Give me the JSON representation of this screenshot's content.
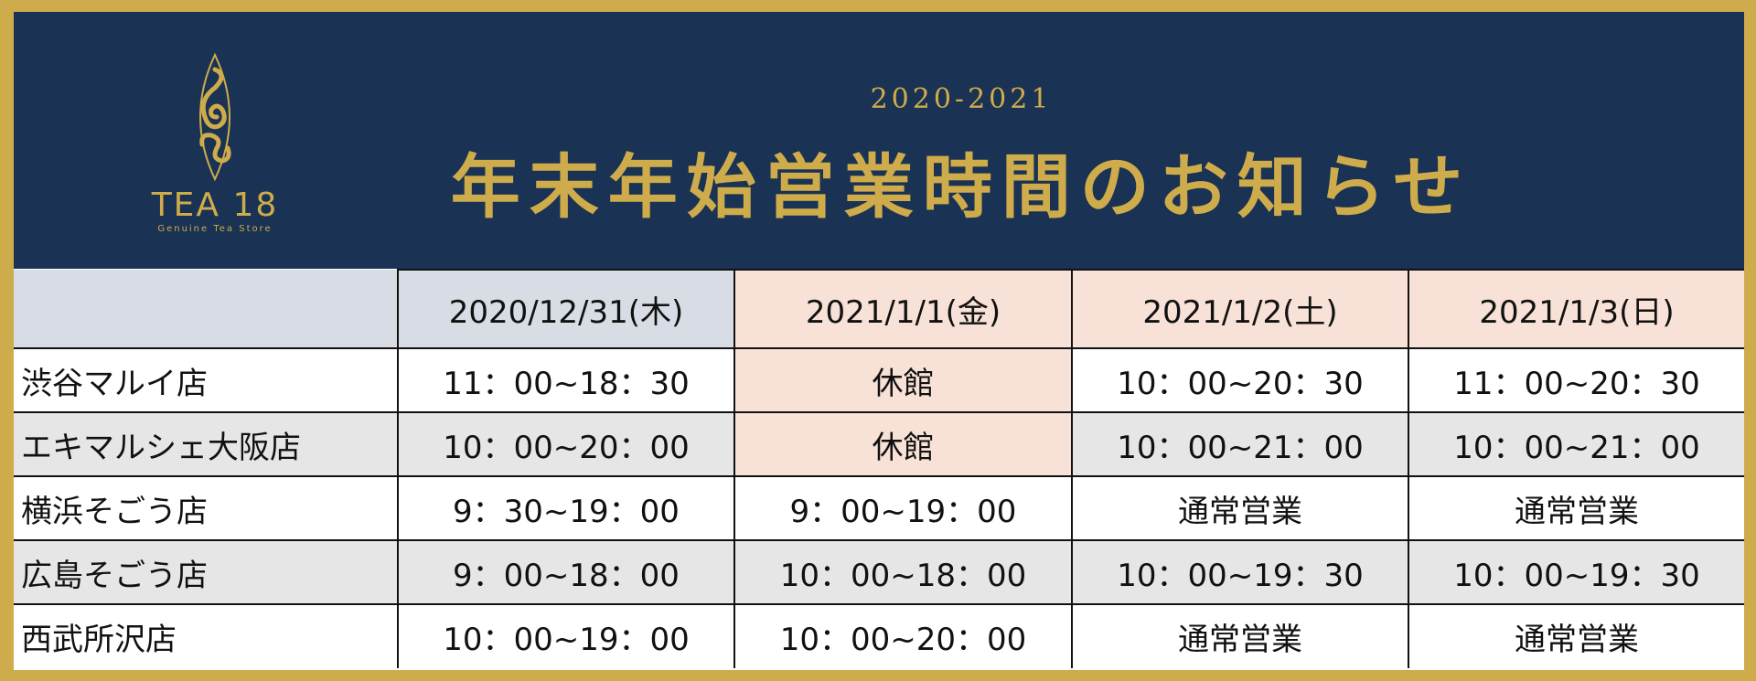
{
  "colors": {
    "navy": "#1a3253",
    "gold": "#cfac4b",
    "header_gray": "#d8dce5",
    "peach": "#f8e1d6",
    "row_alt": "#e6e6e6"
  },
  "logo": {
    "brand": "TEA 18",
    "tagline": "Genuine Tea Store"
  },
  "header": {
    "years": "2020-2021",
    "title": "年末年始営業時間のお知らせ"
  },
  "table": {
    "columns": [
      "",
      "2020/12/31(木)",
      "2021/1/1(金)",
      "2021/1/2(土)",
      "2021/1/3(日)"
    ],
    "rows": [
      {
        "store": "渋谷マルイ店",
        "hours": [
          "11：00~18：30",
          "休館",
          "10：00~20：30",
          "11：00~20：30"
        ]
      },
      {
        "store": "エキマルシェ大阪店",
        "hours": [
          "10：00~20：00",
          "休館",
          "10：00~21：00",
          "10：00~21：00"
        ]
      },
      {
        "store": "横浜そごう店",
        "hours": [
          "9：30~19：00",
          "9：00~19：00",
          "通常営業",
          "通常営業"
        ]
      },
      {
        "store": "広島そごう店",
        "hours": [
          "9：00~18：00",
          "10：00~18：00",
          "10：00~19：30",
          "10：00~19：30"
        ]
      },
      {
        "store": "西武所沢店",
        "hours": [
          "10：00~19：00",
          "10：00~20：00",
          "通常営業",
          "通常営業"
        ]
      }
    ]
  }
}
